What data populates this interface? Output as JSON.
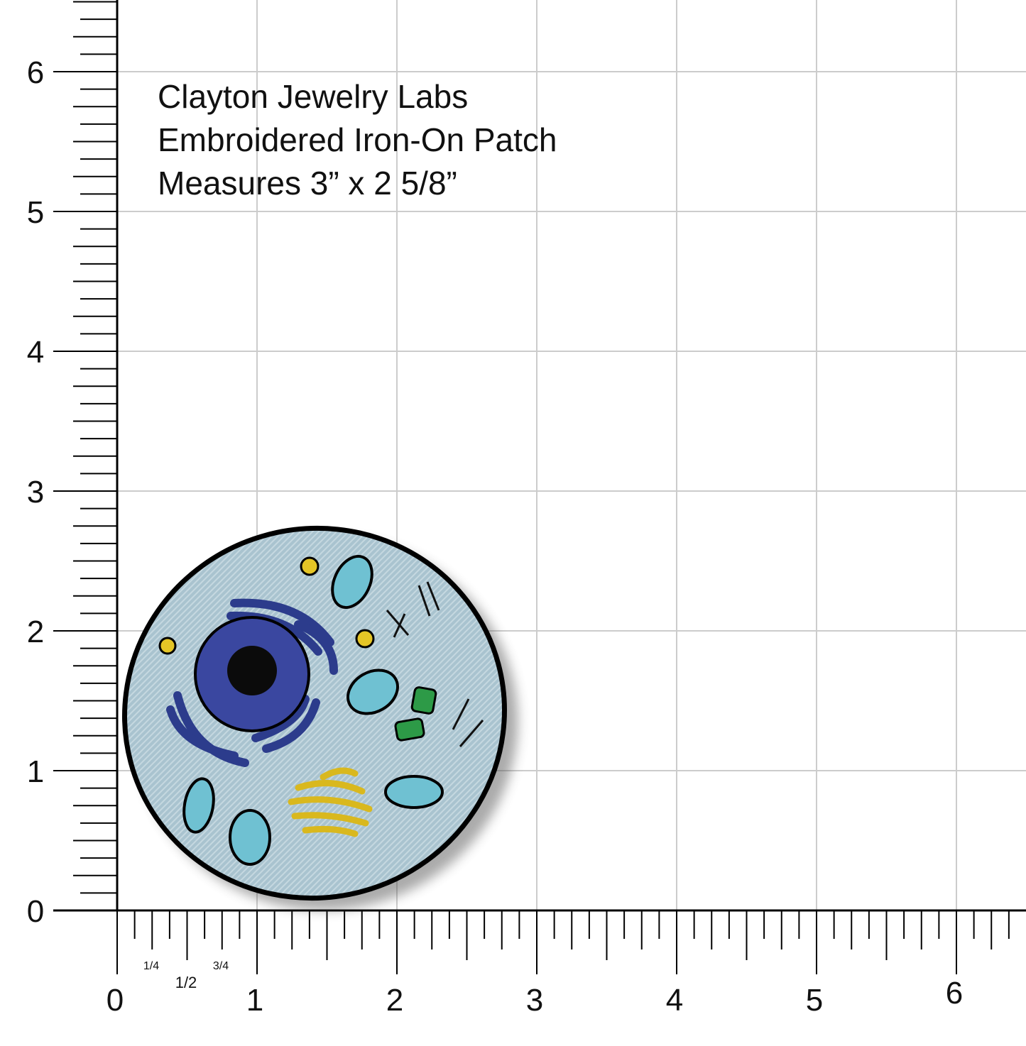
{
  "caption": {
    "lines": [
      "Clayton Jewelry Labs",
      "Embroidered Iron-On Patch",
      "Measures 3” x 2 5/8”"
    ]
  },
  "ruler": {
    "x_labels": [
      0,
      1,
      2,
      3,
      4,
      5,
      6
    ],
    "y_labels": [
      0,
      1,
      2,
      3,
      4,
      5,
      6
    ],
    "fractions": [
      "1/4",
      "1/2",
      "3/4"
    ]
  }
}
